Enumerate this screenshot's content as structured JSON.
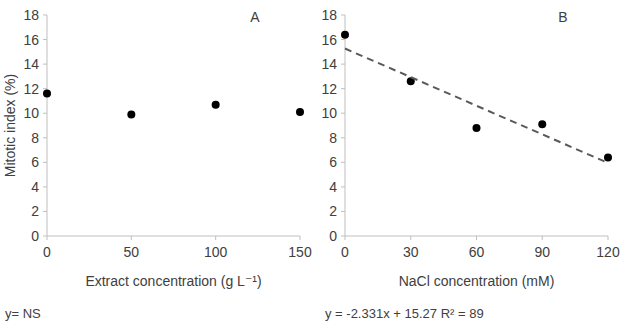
{
  "chart_data": [
    {
      "type": "scatter",
      "title": "A",
      "x_label": "Extract concentration (g L⁻¹)",
      "y_label": "Mitotic index (%)",
      "annotation": "y= NS",
      "series": [
        {
          "type": "scatter",
          "x": [
            0,
            50,
            100,
            150
          ],
          "values": [
            11.6,
            9.9,
            10.7,
            10.1
          ],
          "color": "#000000",
          "marker": "circle"
        }
      ],
      "xlim": [
        0,
        150
      ],
      "xticks": [
        0,
        50,
        100,
        150
      ],
      "ylim": [
        0,
        18
      ],
      "yticks": [
        0,
        2,
        4,
        6,
        8,
        10,
        12,
        14,
        16,
        18
      ],
      "grid": false
    },
    {
      "type": "scatter",
      "title": "B",
      "x_label": "NaCl concentration (mM)",
      "annotation": "y = -2.331x + 15.27 R² = 89",
      "series": [
        {
          "type": "scatter",
          "x": [
            0,
            30,
            60,
            90,
            120
          ],
          "values": [
            16.4,
            12.6,
            8.8,
            9.1,
            6.4
          ],
          "color": "#000000",
          "marker": "circle"
        },
        {
          "type": "line",
          "x": [
            0,
            120
          ],
          "values": [
            15.27,
            5.95
          ],
          "color": "#595959",
          "line_style": "dashed"
        }
      ],
      "xlim": [
        0,
        120
      ],
      "xticks": [
        0,
        30,
        60,
        90,
        120
      ],
      "ylim": [
        0,
        18
      ],
      "yticks": [
        0,
        2,
        4,
        6,
        8,
        10,
        12,
        14,
        16,
        18
      ],
      "grid": false
    }
  ]
}
